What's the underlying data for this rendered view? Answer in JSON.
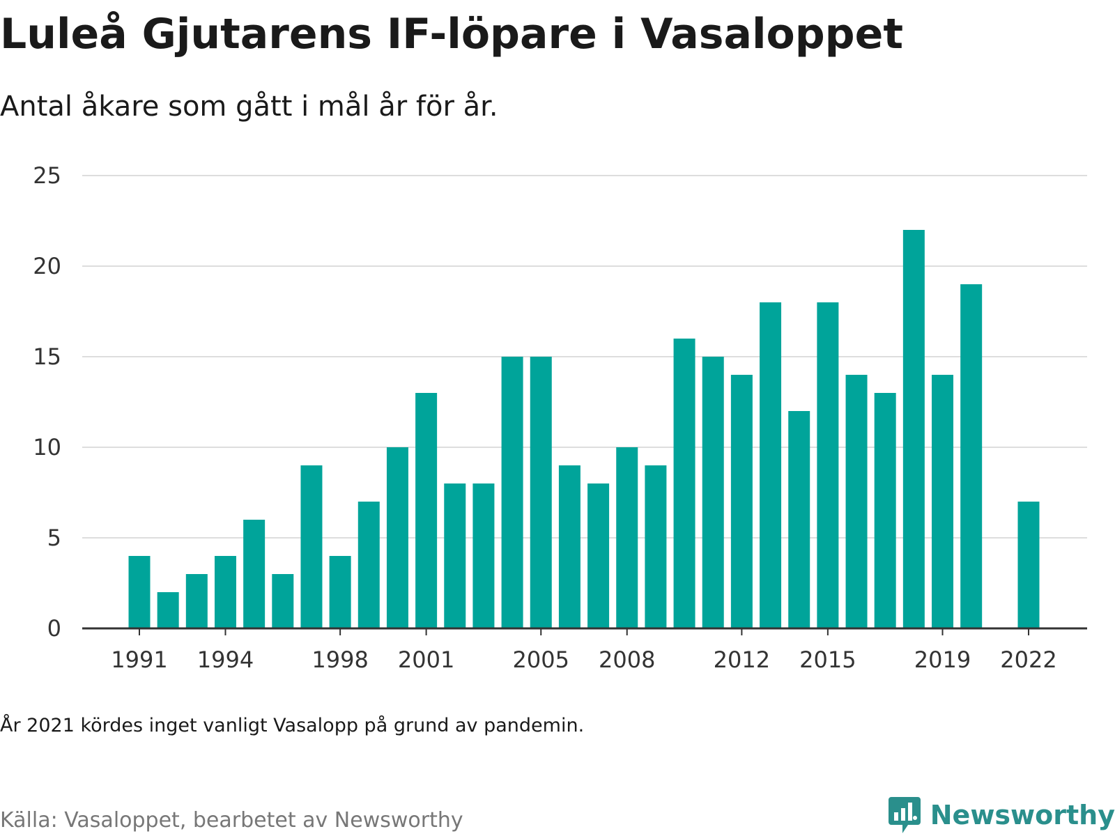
{
  "title": "Luleå Gjutarens IF-löpare i Vasaloppet",
  "subtitle": "Antal åkare som gått i mål år för år.",
  "note": "År 2021 kördes inget vanligt Vasalopp på grund av pandemin.",
  "source": "Källa: Vasaloppet, bearbetet av Newsworthy",
  "brand": {
    "name": "Newsworthy",
    "icon": "newsworthy-logo-icon"
  },
  "colors": {
    "bar": "#00a49a",
    "grid": "#dddddd",
    "axis": "#333333",
    "brand": "#2a8f8c"
  },
  "chart_data": {
    "type": "bar",
    "title": "Luleå Gjutarens IF-löpare i Vasaloppet",
    "subtitle": "Antal åkare som gått i mål år för år.",
    "xlabel": "",
    "ylabel": "",
    "ylim": [
      0,
      25
    ],
    "yticks": [
      0,
      5,
      10,
      15,
      20,
      25
    ],
    "xticks": [
      1991,
      1994,
      1998,
      2001,
      2005,
      2008,
      2012,
      2015,
      2019,
      2022
    ],
    "grid": true,
    "legend": "none",
    "x": [
      1991,
      1992,
      1993,
      1994,
      1995,
      1996,
      1997,
      1998,
      1999,
      2000,
      2001,
      2002,
      2003,
      2004,
      2005,
      2006,
      2007,
      2008,
      2009,
      2010,
      2011,
      2012,
      2013,
      2014,
      2015,
      2016,
      2017,
      2018,
      2019,
      2020,
      2022
    ],
    "values": [
      4,
      2,
      3,
      4,
      6,
      3,
      9,
      4,
      7,
      10,
      13,
      8,
      8,
      15,
      15,
      9,
      8,
      10,
      9,
      16,
      15,
      14,
      18,
      12,
      18,
      14,
      13,
      22,
      14,
      19,
      7
    ]
  }
}
